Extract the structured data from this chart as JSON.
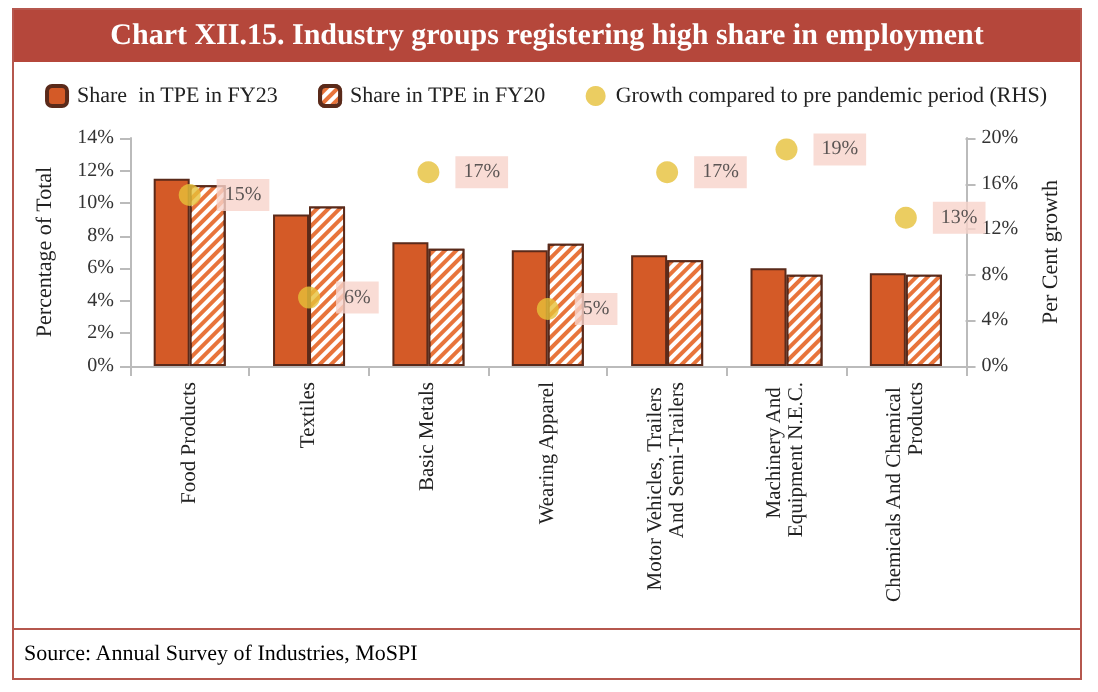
{
  "chart_data": {
    "type": "bar",
    "title": "Chart XII.15. Industry groups registering high share in employment",
    "ylabel": "Percentage of Total",
    "y2label": "Per Cent growth",
    "categories": [
      "Food Products",
      "Textiles",
      "Basic Metals",
      "Wearing Apparel",
      "Motor Vehicles, Trailers And Semi-Trailers",
      "Machinery And Equipment N.E.C.",
      "Chemicals And Chemical Products"
    ],
    "series": [
      {
        "name": "Share  in TPE in FY23",
        "color": "#d45a27",
        "values": [
          11.5,
          9.3,
          7.6,
          7.1,
          6.8,
          6.0,
          5.7
        ]
      },
      {
        "name": "Share in TPE in FY20",
        "color": "#e8743b",
        "values": [
          11.1,
          9.8,
          7.2,
          7.5,
          6.5,
          5.6,
          5.6
        ]
      },
      {
        "name": "Growth compared to pre pandemic period (RHS)",
        "type": "scatter",
        "axis": "y2",
        "marker": "circle",
        "color": "#e6c03a",
        "values": [
          15,
          6,
          17,
          5,
          17,
          19,
          13
        ],
        "value_labels": [
          "15%",
          "6%",
          "17%",
          "5%",
          "17%",
          "19%",
          "13%"
        ]
      }
    ],
    "ylim": [
      0,
      14
    ],
    "yticks": [
      {
        "value": 0,
        "label": "0%"
      },
      {
        "value": 2,
        "label": "2%"
      },
      {
        "value": 4,
        "label": "4%"
      },
      {
        "value": 6,
        "label": "6%"
      },
      {
        "value": 8,
        "label": "8%"
      },
      {
        "value": 10,
        "label": "10%"
      },
      {
        "value": 12,
        "label": "12%"
      },
      {
        "value": 14,
        "label": "14%"
      }
    ],
    "y2lim": [
      0,
      20
    ],
    "y2ticks": [
      {
        "value": 0,
        "label": "0%"
      },
      {
        "value": 4,
        "label": "4%"
      },
      {
        "value": 8,
        "label": "8%"
      },
      {
        "value": 12,
        "label": "12%"
      },
      {
        "value": 16,
        "label": "16%"
      },
      {
        "value": 20,
        "label": "20%"
      }
    ],
    "grid": false,
    "legend": "top",
    "annotations": [
      "Source: Annual Survey of Industries, MoSPI"
    ]
  }
}
